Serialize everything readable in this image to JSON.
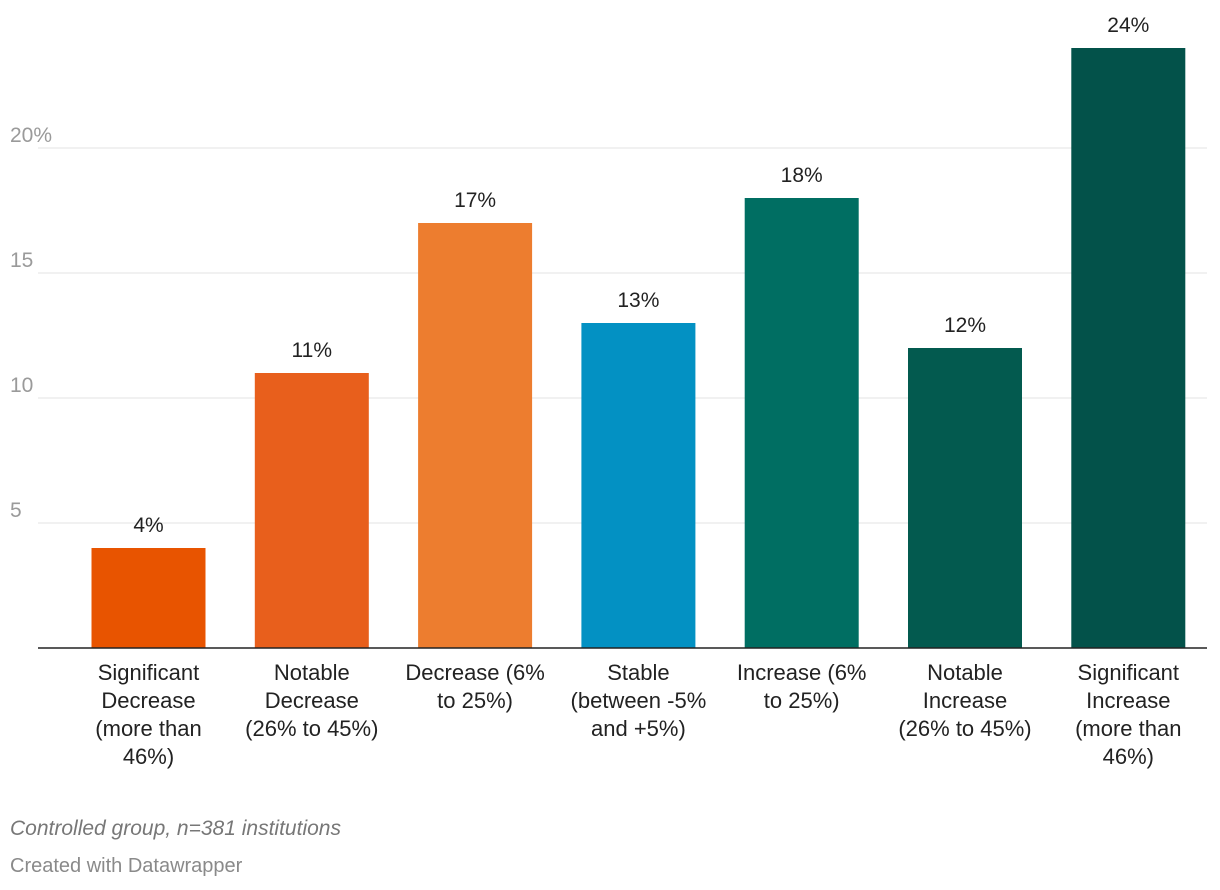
{
  "chart_data": {
    "type": "bar",
    "categories": [
      [
        "Significant",
        "Decrease",
        "(more than",
        "46%)"
      ],
      [
        "Notable",
        "Decrease",
        "(26% to 45%)"
      ],
      [
        "Decrease (6%",
        "to 25%)"
      ],
      [
        "Stable",
        "(between -5%",
        "and +5%)"
      ],
      [
        "Increase (6%",
        "to 25%)"
      ],
      [
        "Notable",
        "Increase",
        "(26% to 45%)"
      ],
      [
        "Significant",
        "Increase",
        "(more than",
        "46%)"
      ]
    ],
    "values": [
      4,
      11,
      17,
      13,
      18,
      12,
      24
    ],
    "value_labels": [
      "4%",
      "11%",
      "17%",
      "13%",
      "18%",
      "12%",
      "24%"
    ],
    "colors": [
      "#e85400",
      "#e85f1c",
      "#ed7d2f",
      "#0391c3",
      "#006e62",
      "#035a4f",
      "#03524a"
    ],
    "yticks": [
      5,
      10,
      15,
      20
    ],
    "ytick_labels": [
      "5",
      "10",
      "15",
      "20%"
    ],
    "ylim": [
      0,
      24
    ],
    "grid": true
  },
  "footer": {
    "note": "Controlled group, n=381 institutions",
    "credit": "Created with Datawrapper"
  }
}
